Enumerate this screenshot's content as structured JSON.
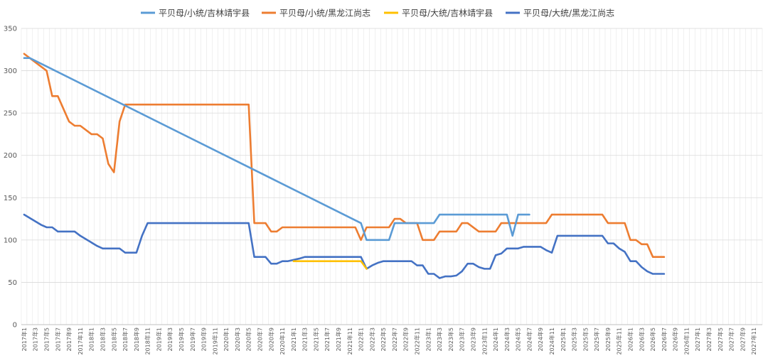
{
  "chart_data": {
    "type": "line",
    "title": "",
    "xlabel": "",
    "ylabel": "",
    "ylim": [
      0,
      350
    ],
    "yticks": [
      0,
      50,
      100,
      150,
      200,
      250,
      300,
      350
    ],
    "grid": "vertical and horizontal",
    "legend_position": "top",
    "x_ticks": [
      "2017年1",
      "2017年3",
      "2017年5",
      "2017年7",
      "2017年9",
      "2017年11",
      "2018年1",
      "2018年3",
      "2018年5",
      "2018年7",
      "2018年9",
      "2018年11",
      "2019年1",
      "2019年3",
      "2019年5",
      "2019年7",
      "2019年9",
      "2019年11",
      "2020年1",
      "2020年3",
      "2020年5",
      "2020年7",
      "2020年9",
      "2020年11",
      "2021年1",
      "2021年3",
      "2021年5",
      "2021年7",
      "2021年9",
      "2021年11",
      "2022年1",
      "2022年3",
      "2022年5",
      "2022年7",
      "2022年9",
      "2022年11",
      "2023年1",
      "2023年3",
      "2023年5",
      "2023年7",
      "2023年9",
      "2023年11",
      "2024年1",
      "2024年3",
      "2024年5",
      "2024年7",
      "2024年9",
      "2024年11",
      "2025年1",
      "2025年3",
      "2025年5",
      "2025年7",
      "2025年9",
      "2025年11",
      "2026年1",
      "2026年3",
      "2026年5",
      "2026年7",
      "2026年9",
      "2026年11",
      "2027年1",
      "2027年3",
      "2027年5",
      "2027年7",
      "2027年9",
      "2027年11"
    ],
    "series": [
      {
        "name": "平贝母/小统/吉林靖宇县",
        "color": "#5B9BD5",
        "points": [
          [
            0,
            315
          ],
          [
            1,
            315
          ],
          [
            60,
            120
          ],
          [
            61,
            100
          ],
          [
            65,
            100
          ],
          [
            66,
            120
          ],
          [
            73,
            120
          ],
          [
            74,
            130
          ],
          [
            86,
            130
          ],
          [
            87,
            105
          ],
          [
            88,
            130
          ],
          [
            90,
            130
          ]
        ]
      },
      {
        "name": "平贝母/小统/黑龙江尚志",
        "color": "#ED7D31",
        "points": [
          [
            0,
            320
          ],
          [
            2,
            310
          ],
          [
            4,
            300
          ],
          [
            5,
            270
          ],
          [
            6,
            270
          ],
          [
            8,
            240
          ],
          [
            9,
            235
          ],
          [
            10,
            235
          ],
          [
            12,
            225
          ],
          [
            13,
            225
          ],
          [
            14,
            220
          ],
          [
            15,
            190
          ],
          [
            16,
            180
          ],
          [
            17,
            240
          ],
          [
            18,
            260
          ],
          [
            40,
            260
          ],
          [
            41,
            120
          ],
          [
            43,
            120
          ],
          [
            44,
            110
          ],
          [
            45,
            110
          ],
          [
            46,
            115
          ],
          [
            52,
            115
          ],
          [
            59,
            115
          ],
          [
            60,
            100
          ],
          [
            61,
            115
          ],
          [
            65,
            115
          ],
          [
            66,
            125
          ],
          [
            67,
            125
          ],
          [
            68,
            120
          ],
          [
            70,
            120
          ],
          [
            71,
            100
          ],
          [
            73,
            100
          ],
          [
            74,
            110
          ],
          [
            77,
            110
          ],
          [
            78,
            120
          ],
          [
            79,
            120
          ],
          [
            81,
            110
          ],
          [
            84,
            110
          ],
          [
            85,
            120
          ],
          [
            93,
            120
          ],
          [
            94,
            130
          ],
          [
            103,
            130
          ],
          [
            104,
            120
          ],
          [
            107,
            120
          ],
          [
            108,
            100
          ],
          [
            109,
            100
          ],
          [
            110,
            95
          ],
          [
            111,
            95
          ],
          [
            112,
            80
          ],
          [
            114,
            80
          ]
        ]
      },
      {
        "name": "平贝母/大统/吉林靖宇县",
        "color": "#FFC000",
        "points": [
          [
            48,
            75
          ],
          [
            50,
            75
          ],
          [
            59,
            75
          ],
          [
            60,
            75
          ],
          [
            61,
            66
          ]
        ]
      },
      {
        "name": "平贝母/大统/黑龙江尚志",
        "color": "#4472C4",
        "points": [
          [
            0,
            130
          ],
          [
            2,
            122
          ],
          [
            3,
            118
          ],
          [
            4,
            115
          ],
          [
            5,
            115
          ],
          [
            6,
            110
          ],
          [
            8,
            110
          ],
          [
            9,
            110
          ],
          [
            10,
            105
          ],
          [
            13,
            93
          ],
          [
            14,
            90
          ],
          [
            15,
            90
          ],
          [
            17,
            90
          ],
          [
            18,
            85
          ],
          [
            20,
            85
          ],
          [
            21,
            105
          ],
          [
            22,
            120
          ],
          [
            40,
            120
          ],
          [
            41,
            80
          ],
          [
            42,
            80
          ],
          [
            43,
            80
          ],
          [
            44,
            72
          ],
          [
            45,
            72
          ],
          [
            46,
            75
          ],
          [
            47,
            75
          ],
          [
            49,
            78
          ],
          [
            50,
            80
          ],
          [
            59,
            80
          ],
          [
            60,
            80
          ],
          [
            61,
            66
          ],
          [
            62,
            70
          ],
          [
            63,
            73
          ],
          [
            64,
            75
          ],
          [
            69,
            75
          ],
          [
            70,
            70
          ],
          [
            71,
            70
          ],
          [
            72,
            60
          ],
          [
            73,
            60
          ],
          [
            74,
            55
          ],
          [
            75,
            57
          ],
          [
            76,
            57
          ],
          [
            77,
            58
          ],
          [
            78,
            63
          ],
          [
            79,
            72
          ],
          [
            80,
            72
          ],
          [
            81,
            68
          ],
          [
            82,
            66
          ],
          [
            83,
            66
          ],
          [
            84,
            82
          ],
          [
            85,
            84
          ],
          [
            86,
            90
          ],
          [
            88,
            90
          ],
          [
            89,
            92
          ],
          [
            92,
            92
          ],
          [
            93,
            88
          ],
          [
            94,
            85
          ],
          [
            95,
            105
          ],
          [
            96,
            105
          ],
          [
            103,
            105
          ],
          [
            104,
            96
          ],
          [
            105,
            96
          ],
          [
            106,
            90
          ],
          [
            107,
            86
          ],
          [
            108,
            75
          ],
          [
            109,
            75
          ],
          [
            110,
            68
          ],
          [
            111,
            63
          ],
          [
            112,
            60
          ],
          [
            114,
            60
          ]
        ]
      }
    ]
  }
}
